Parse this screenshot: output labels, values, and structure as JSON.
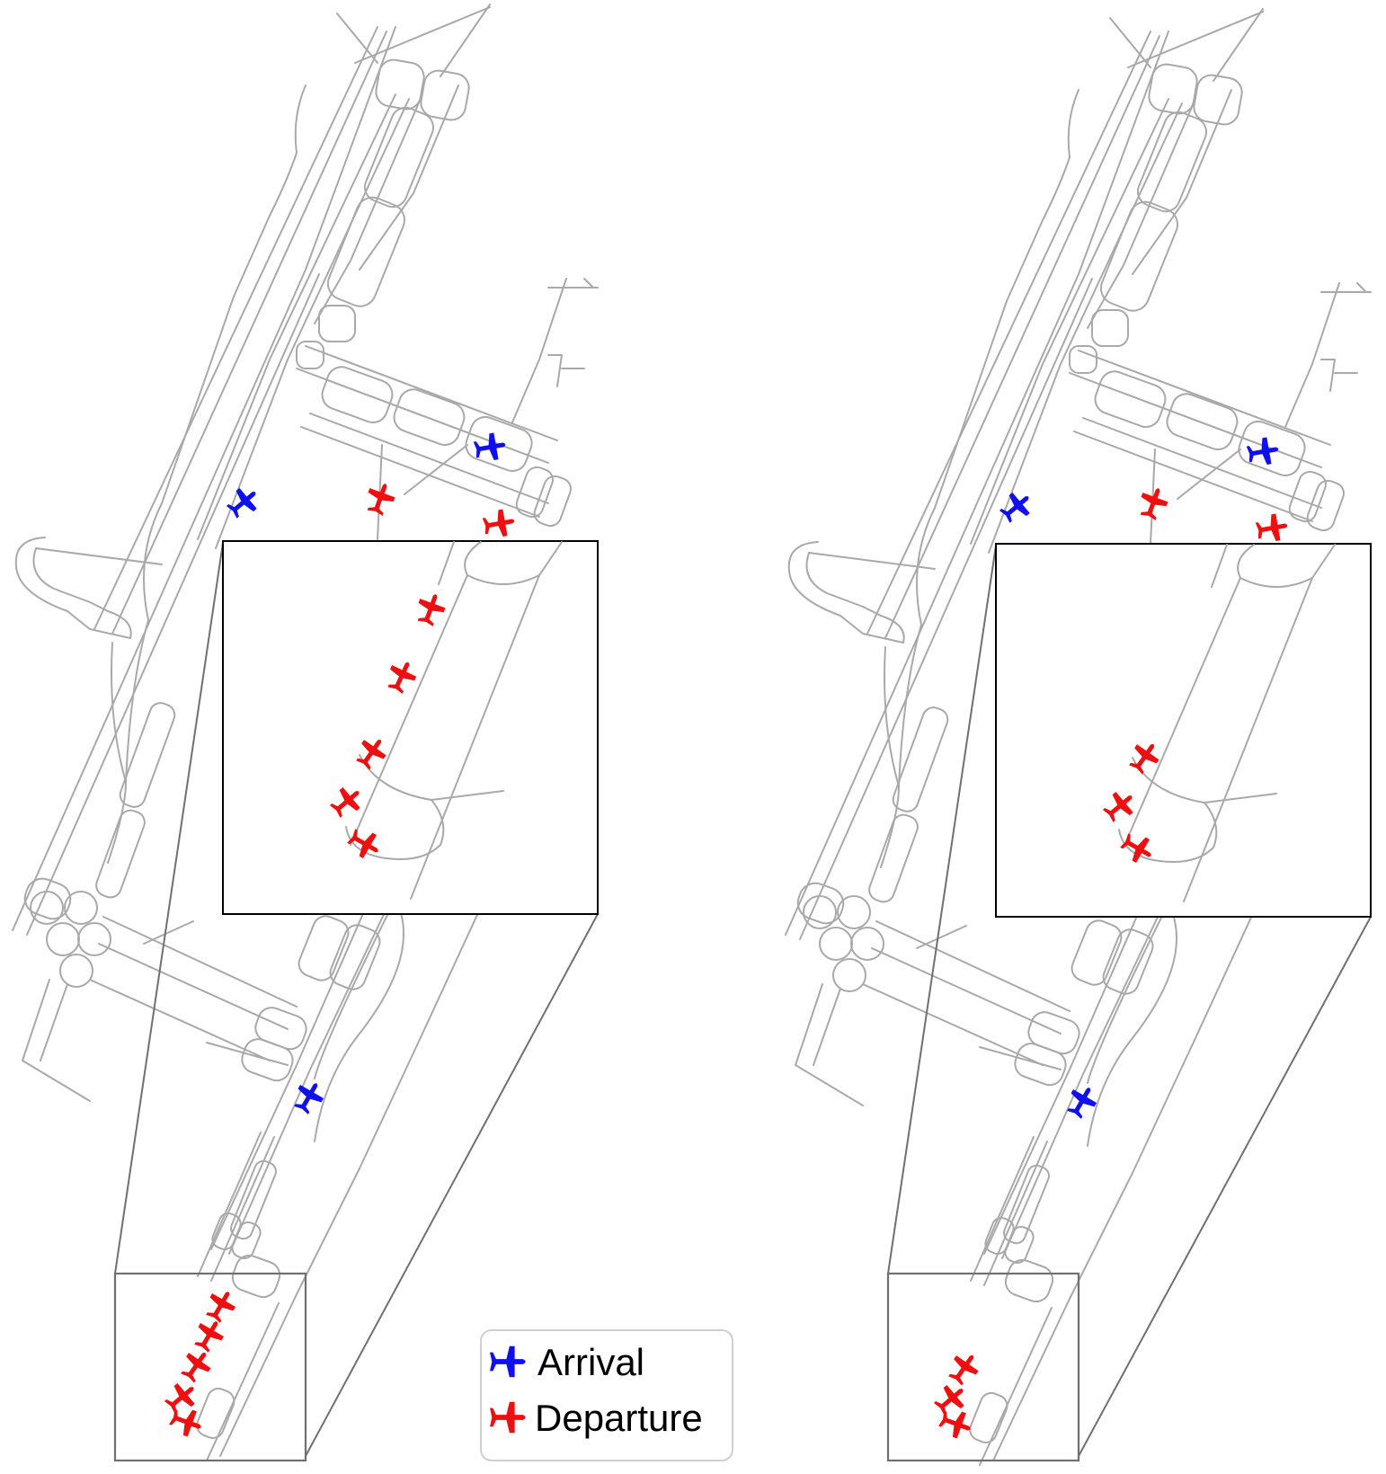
{
  "legend": {
    "entries": [
      {
        "label": "Arrival",
        "color": "#1010ee",
        "icon": "airplane-icon"
      },
      {
        "label": "Departure",
        "color": "#ee1010",
        "icon": "airplane-icon"
      }
    ]
  },
  "colors": {
    "arrival": "#1010ee",
    "departure": "#ee1010",
    "taxiway": "#a9a9a9"
  },
  "panels": [
    {
      "name": "left-panel",
      "arrivals_shown": 3,
      "departures_shown": 3,
      "departures_in_zoom": 5
    },
    {
      "name": "right-panel",
      "arrivals_shown": 3,
      "departures_shown": 3,
      "departures_in_zoom": 3
    }
  ]
}
